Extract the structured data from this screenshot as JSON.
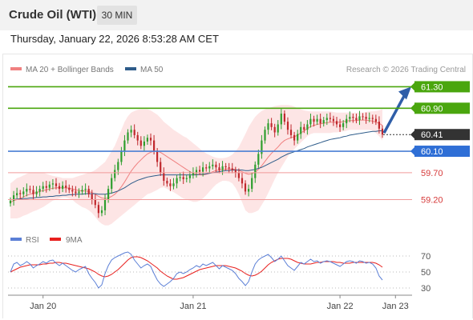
{
  "header": {
    "title": "Crude Oil (WTI)",
    "timeframe": "30 MIN"
  },
  "datetime": "Thursday, January 22, 2026 8:53:28 AM CET",
  "legend": {
    "ma20": "MA 20 + Bollinger Bands",
    "ma50": "MA 50",
    "credit": "Research © 2026 Trading Central",
    "rsi": "RSI",
    "ma9": "9MA"
  },
  "colors": {
    "ma20": "#f08080",
    "ma50": "#2e5c8a",
    "band": "#fde0e0",
    "green": "#4aa60e",
    "blue": "#4a7fd4",
    "red": "#e85c5c",
    "rsi": "#5b7fd6",
    "ma9": "#e8201e",
    "bull": "#2e9e2e",
    "bear": "#c0282d"
  },
  "chart_data": {
    "type": "candlestick",
    "price_ylim": [
      58.85,
      61.5
    ],
    "levels": [
      {
        "label": "61.30",
        "value": 61.3,
        "style": "green"
      },
      {
        "label": "60.90",
        "value": 60.9,
        "style": "green"
      },
      {
        "label": "60.41",
        "value": 60.41,
        "style": "current"
      },
      {
        "label": "60.10",
        "value": 60.1,
        "style": "blue"
      },
      {
        "label": "59.70",
        "value": 59.7,
        "style": "red"
      },
      {
        "label": "59.20",
        "value": 59.2,
        "style": "red"
      }
    ],
    "close": [
      59.18,
      59.28,
      59.32,
      59.3,
      59.35,
      59.4,
      59.38,
      59.3,
      59.35,
      59.4,
      59.45,
      59.42,
      59.48,
      59.5,
      59.45,
      59.4,
      59.46,
      59.42,
      59.38,
      59.35,
      59.32,
      59.35,
      59.38,
      59.4,
      59.3,
      59.2,
      59.1,
      58.95,
      59.0,
      59.2,
      59.4,
      59.6,
      59.75,
      59.9,
      60.1,
      60.3,
      60.45,
      60.5,
      60.4,
      60.3,
      60.2,
      60.28,
      60.35,
      60.3,
      60.1,
      59.9,
      59.7,
      59.55,
      59.5,
      59.45,
      59.5,
      59.6,
      59.62,
      59.58,
      59.6,
      59.65,
      59.7,
      59.75,
      59.72,
      59.8,
      59.78,
      59.82,
      59.85,
      59.8,
      59.75,
      59.82,
      59.8,
      59.78,
      59.75,
      59.7,
      59.6,
      59.5,
      59.35,
      59.4,
      59.6,
      59.85,
      60.05,
      60.3,
      60.5,
      60.62,
      60.55,
      60.45,
      60.6,
      60.8,
      60.65,
      60.5,
      60.4,
      60.3,
      60.42,
      60.55,
      60.5,
      60.6,
      60.7,
      60.65,
      60.7,
      60.62,
      60.68,
      60.72,
      60.7,
      60.66,
      60.6,
      60.55,
      60.62,
      60.7,
      60.74,
      60.72,
      60.68,
      60.75,
      60.74,
      60.7,
      60.72,
      60.7,
      60.65,
      60.52,
      60.41
    ],
    "ma20": [
      59.15,
      59.18,
      59.2,
      59.22,
      59.25,
      59.28,
      59.3,
      59.32,
      59.33,
      59.35,
      59.37,
      59.38,
      59.4,
      59.41,
      59.42,
      59.42,
      59.42,
      59.42,
      59.41,
      59.4,
      59.38,
      59.37,
      59.36,
      59.36,
      59.35,
      59.33,
      59.3,
      59.26,
      59.23,
      59.22,
      59.23,
      59.26,
      59.3,
      59.36,
      59.44,
      59.53,
      59.63,
      59.73,
      59.81,
      59.88,
      59.94,
      60.0,
      60.05,
      60.08,
      60.1,
      60.1,
      60.08,
      60.04,
      60.0,
      59.96,
      59.92,
      59.88,
      59.84,
      59.8,
      59.76,
      59.72,
      59.69,
      59.67,
      59.66,
      59.66,
      59.67,
      59.69,
      59.72,
      59.74,
      59.75,
      59.76,
      59.77,
      59.77,
      59.77,
      59.76,
      59.74,
      59.72,
      59.69,
      59.67,
      59.68,
      59.71,
      59.76,
      59.83,
      59.91,
      59.99,
      60.06,
      60.12,
      60.18,
      60.25,
      60.3,
      60.33,
      60.35,
      60.37,
      60.4,
      60.44,
      60.48,
      60.52,
      60.56,
      60.58,
      60.6,
      60.61,
      60.62,
      60.63,
      60.64,
      60.64,
      60.64,
      60.64,
      60.65,
      60.66,
      60.67,
      60.67,
      60.67,
      60.68,
      60.68,
      60.68,
      60.67,
      60.66,
      60.64,
      60.62,
      60.58
    ],
    "bb_upper": [
      59.5,
      59.55,
      59.6,
      59.62,
      59.65,
      59.68,
      59.7,
      59.7,
      59.7,
      59.7,
      59.7,
      59.68,
      59.66,
      59.64,
      59.63,
      59.62,
      59.6,
      59.6,
      59.6,
      59.6,
      59.62,
      59.64,
      59.66,
      59.68,
      59.7,
      59.72,
      59.75,
      59.8,
      59.85,
      59.9,
      60.0,
      60.1,
      60.2,
      60.35,
      60.5,
      60.65,
      60.75,
      60.82,
      60.85,
      60.87,
      60.88,
      60.88,
      60.88,
      60.86,
      60.82,
      60.78,
      60.72,
      60.65,
      60.6,
      60.55,
      60.5,
      60.46,
      60.42,
      60.38,
      60.35,
      60.3,
      60.25,
      60.2,
      60.15,
      60.1,
      60.06,
      60.03,
      60.0,
      59.98,
      59.97,
      59.97,
      59.98,
      60.0,
      60.04,
      60.1,
      60.18,
      60.3,
      60.42,
      60.55,
      60.65,
      60.74,
      60.8,
      60.85,
      60.88,
      60.9,
      60.92,
      60.94,
      60.95,
      60.96,
      60.96,
      60.96,
      60.95,
      60.93,
      60.9,
      60.88,
      60.86,
      60.85,
      60.84,
      60.84,
      60.84,
      60.84,
      60.84,
      60.84,
      60.84,
      60.83,
      60.82,
      60.82,
      60.82,
      60.82,
      60.82,
      60.82,
      60.82,
      60.82,
      60.82,
      60.83,
      60.84,
      60.84,
      60.85,
      60.86,
      60.88
    ],
    "bb_lower": [
      58.85,
      58.85,
      58.85,
      58.87,
      58.9,
      58.92,
      58.95,
      58.98,
      59.0,
      59.03,
      59.06,
      59.1,
      59.14,
      59.18,
      59.2,
      59.22,
      59.24,
      59.24,
      59.22,
      59.2,
      59.14,
      59.1,
      59.06,
      59.04,
      59.0,
      58.95,
      58.88,
      58.8,
      58.75,
      58.72,
      58.72,
      58.75,
      58.8,
      58.85,
      58.9,
      58.95,
      59.0,
      59.05,
      59.1,
      59.15,
      59.2,
      59.25,
      59.3,
      59.32,
      59.35,
      59.38,
      59.42,
      59.43,
      59.4,
      59.37,
      59.34,
      59.3,
      59.26,
      59.22,
      59.2,
      59.18,
      59.16,
      59.16,
      59.18,
      59.22,
      59.28,
      59.35,
      59.42,
      59.48,
      59.52,
      59.55,
      59.55,
      59.54,
      59.5,
      59.42,
      59.3,
      59.15,
      59.0,
      58.95,
      58.95,
      58.97,
      59.0,
      59.1,
      59.2,
      59.32,
      59.45,
      59.58,
      59.7,
      59.8,
      59.9,
      60.0,
      60.08,
      60.14,
      60.2,
      60.26,
      60.32,
      60.38,
      60.42,
      60.44,
      60.44,
      60.44,
      60.44,
      60.44,
      60.44,
      60.45,
      60.45,
      60.46,
      60.47,
      60.48,
      60.5,
      60.5,
      60.5,
      60.5,
      60.5,
      60.5,
      60.5,
      60.48,
      60.44,
      60.38,
      60.3
    ],
    "ma50": [
      59.2,
      59.2,
      59.21,
      59.21,
      59.22,
      59.22,
      59.23,
      59.23,
      59.24,
      59.24,
      59.25,
      59.25,
      59.26,
      59.26,
      59.27,
      59.27,
      59.28,
      59.28,
      59.29,
      59.29,
      59.3,
      59.3,
      59.3,
      59.31,
      59.31,
      59.31,
      59.31,
      59.3,
      59.3,
      59.3,
      59.31,
      59.32,
      59.34,
      59.36,
      59.39,
      59.42,
      59.46,
      59.5,
      59.53,
      59.56,
      59.58,
      59.6,
      59.62,
      59.63,
      59.64,
      59.65,
      59.66,
      59.66,
      59.66,
      59.66,
      59.66,
      59.66,
      59.66,
      59.66,
      59.66,
      59.66,
      59.66,
      59.66,
      59.67,
      59.67,
      59.68,
      59.69,
      59.7,
      59.71,
      59.72,
      59.73,
      59.74,
      59.74,
      59.75,
      59.75,
      59.75,
      59.75,
      59.74,
      59.74,
      59.75,
      59.76,
      59.78,
      59.8,
      59.83,
      59.86,
      59.89,
      59.92,
      59.95,
      59.99,
      60.02,
      60.05,
      60.07,
      60.09,
      60.11,
      60.13,
      60.15,
      60.18,
      60.2,
      60.22,
      60.24,
      60.26,
      60.28,
      60.3,
      60.32,
      60.33,
      60.34,
      60.35,
      60.37,
      60.38,
      60.4,
      60.41,
      60.42,
      60.43,
      60.44,
      60.45,
      60.46,
      60.47,
      60.47,
      60.48,
      60.48
    ],
    "rsi": [
      50,
      60,
      62,
      58,
      60,
      63,
      60,
      55,
      58,
      60,
      63,
      61,
      64,
      65,
      61,
      58,
      61,
      58,
      55,
      52,
      50,
      53,
      55,
      57,
      48,
      42,
      37,
      30,
      34,
      48,
      58,
      65,
      68,
      70,
      72,
      74,
      75,
      72,
      65,
      60,
      55,
      58,
      60,
      57,
      48,
      40,
      35,
      32,
      35,
      38,
      42,
      48,
      50,
      48,
      50,
      53,
      55,
      58,
      56,
      60,
      58,
      60,
      62,
      58,
      54,
      58,
      56,
      54,
      52,
      48,
      42,
      38,
      33,
      38,
      50,
      60,
      65,
      68,
      70,
      72,
      68,
      63,
      66,
      70,
      64,
      58,
      55,
      52,
      57,
      62,
      60,
      63,
      66,
      63,
      64,
      61,
      63,
      64,
      63,
      61,
      59,
      57,
      60,
      63,
      64,
      63,
      61,
      64,
      63,
      61,
      62,
      60,
      55,
      45,
      40
    ],
    "ma9": [
      50,
      52,
      54,
      56,
      57,
      58,
      59,
      59,
      59,
      59,
      60,
      60,
      61,
      61,
      62,
      62,
      61,
      61,
      60,
      59,
      58,
      57,
      56,
      55,
      54,
      52,
      50,
      47,
      45,
      44,
      45,
      47,
      50,
      53,
      57,
      61,
      65,
      68,
      69,
      69,
      68,
      66,
      64,
      61,
      58,
      55,
      51,
      48,
      45,
      43,
      41,
      41,
      42,
      43,
      45,
      47,
      49,
      51,
      53,
      54,
      55,
      56,
      57,
      58,
      58,
      58,
      58,
      57,
      56,
      55,
      53,
      51,
      48,
      46,
      45,
      46,
      48,
      51,
      55,
      59,
      62,
      64,
      66,
      67,
      67,
      67,
      66,
      64,
      62,
      61,
      60,
      60,
      60,
      61,
      62,
      62,
      63,
      63,
      63,
      63,
      62,
      62,
      61,
      61,
      61,
      62,
      62,
      62,
      62,
      62,
      62,
      62,
      61,
      59,
      56
    ],
    "rsi_ylim": [
      20,
      80
    ],
    "rsi_ticks": [
      70,
      50,
      30
    ],
    "x_labels": [
      {
        "label": "Jan 20",
        "index": 10
      },
      {
        "label": "Jan 21",
        "index": 56
      },
      {
        "label": "Jan 22",
        "index": 101
      },
      {
        "label": "Jan 23",
        "index": 118
      }
    ]
  }
}
